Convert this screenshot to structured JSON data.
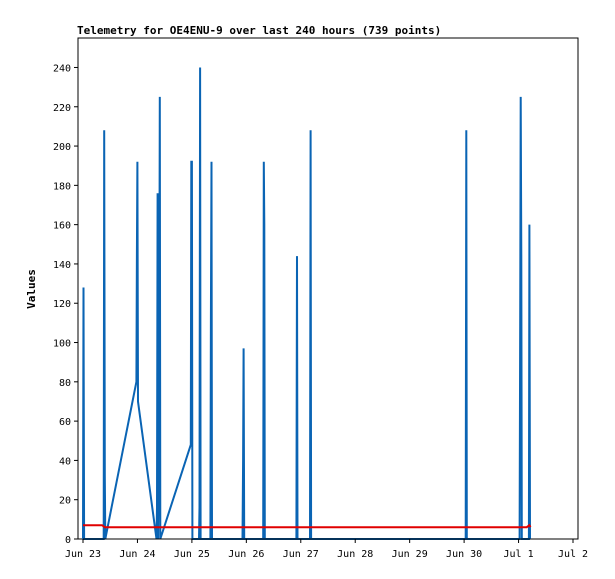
{
  "chart_data": {
    "type": "line",
    "title": "Telemetry for OE4ENU-9 over last 240 hours (739 points)",
    "xlabel": "",
    "ylabel": "Values",
    "ylim": [
      0,
      255
    ],
    "y_ticks": [
      0,
      20,
      40,
      60,
      80,
      100,
      120,
      140,
      160,
      180,
      200,
      220,
      240
    ],
    "xlim": [
      0,
      9
    ],
    "x_ticks": [
      {
        "label": "Jun 23",
        "x": 0
      },
      {
        "label": "Jun 24",
        "x": 1
      },
      {
        "label": "Jun 25",
        "x": 2
      },
      {
        "label": "Jun 26",
        "x": 3
      },
      {
        "label": "Jun 27",
        "x": 4
      },
      {
        "label": "Jun 28",
        "x": 5
      },
      {
        "label": "Jun 29",
        "x": 6
      },
      {
        "label": "Jun 30",
        "x": 7
      },
      {
        "label": "Jul 1",
        "x": 8
      },
      {
        "label": "Jul 2",
        "x": 9
      }
    ],
    "grid": false,
    "legend": "none",
    "series": [
      {
        "color": "#0a64b4",
        "points": [
          [
            0.0,
            0
          ],
          [
            0.01,
            128
          ],
          [
            0.02,
            0
          ],
          [
            0.38,
            0
          ],
          [
            0.39,
            208
          ],
          [
            0.4,
            32
          ],
          [
            0.41,
            0
          ],
          [
            0.98,
            80
          ],
          [
            0.99,
            145
          ],
          [
            1.0,
            192
          ],
          [
            1.01,
            70
          ],
          [
            1.35,
            0
          ],
          [
            1.36,
            16
          ],
          [
            1.37,
            176
          ],
          [
            1.38,
            0
          ],
          [
            1.4,
            80
          ],
          [
            1.41,
            225
          ],
          [
            1.42,
            0
          ],
          [
            1.98,
            48
          ],
          [
            1.99,
            192
          ],
          [
            2.0,
            192
          ],
          [
            2.01,
            0
          ],
          [
            2.13,
            0
          ],
          [
            2.14,
            16
          ],
          [
            2.15,
            240
          ],
          [
            2.16,
            0
          ],
          [
            2.34,
            0
          ],
          [
            2.35,
            112
          ],
          [
            2.36,
            192
          ],
          [
            2.37,
            0
          ],
          [
            2.93,
            0
          ],
          [
            2.94,
            40
          ],
          [
            2.95,
            97
          ],
          [
            2.96,
            0
          ],
          [
            3.31,
            0
          ],
          [
            3.32,
            192
          ],
          [
            3.33,
            160
          ],
          [
            3.34,
            0
          ],
          [
            3.92,
            0
          ],
          [
            3.93,
            144
          ],
          [
            3.94,
            0
          ],
          [
            4.17,
            0
          ],
          [
            4.18,
            208
          ],
          [
            4.19,
            0
          ],
          [
            7.03,
            0
          ],
          [
            7.04,
            208
          ],
          [
            7.05,
            0
          ],
          [
            8.02,
            0
          ],
          [
            8.03,
            112
          ],
          [
            8.04,
            225
          ],
          [
            8.05,
            144
          ],
          [
            8.06,
            0
          ],
          [
            8.19,
            0
          ],
          [
            8.2,
            160
          ],
          [
            8.21,
            0
          ]
        ]
      },
      {
        "color": "#e00000",
        "points": [
          [
            0.0,
            7
          ],
          [
            0.35,
            7
          ],
          [
            0.4,
            6
          ],
          [
            6.95,
            6
          ],
          [
            8.15,
            6
          ],
          [
            8.2,
            7
          ],
          [
            8.22,
            6
          ]
        ]
      },
      {
        "color": "#000000",
        "points": [
          [
            0.0,
            0
          ],
          [
            8.22,
            0
          ]
        ]
      }
    ]
  }
}
